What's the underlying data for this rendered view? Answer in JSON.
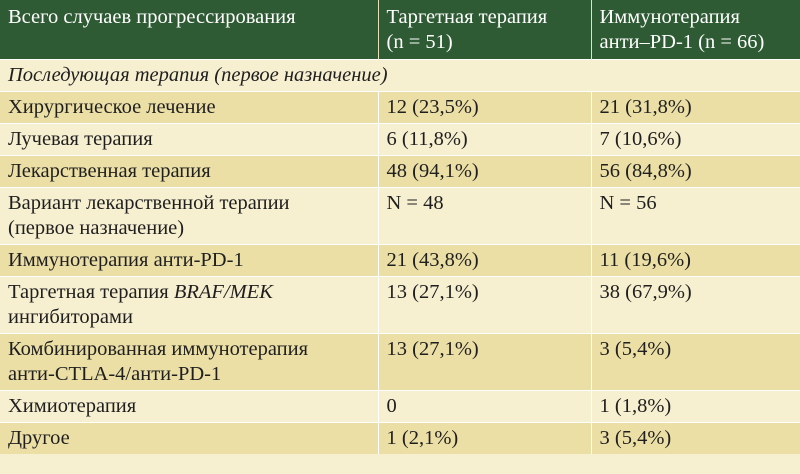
{
  "header": {
    "col1": "Всего случаев прогрессирования",
    "col2_line1": "Таргетная терапия",
    "col2_line2": "(n = 51)",
    "col3_line1": "Иммунотерапия",
    "col3_line2": "анти–PD-1 (n = 66)"
  },
  "section_title": "Последующая терапия (первое назначение)",
  "rows": [
    {
      "label": "Хирургическое лечение",
      "targeted": "12 (23,5%)",
      "immuno": "21 (31,8%)"
    },
    {
      "label": "Лучевая терапия",
      "targeted": "6 (11,8%)",
      "immuno": "7 (10,6%)"
    },
    {
      "label": "Лекарственная терапия",
      "targeted": "48 (94,1%)",
      "immuno": "56 (84,8%)"
    },
    {
      "label_line1": "Вариант лекарственной терапии",
      "label_line2": "(первое назначение)",
      "targeted": "N = 48",
      "immuno": "N = 56"
    },
    {
      "label": "Иммунотерапия анти-PD-1",
      "targeted": "21 (43,8%)",
      "immuno": "11 (19,6%)"
    },
    {
      "label_prefix": "Таргетная терапия ",
      "label_italic": "BRAF/MEK",
      "label_line2": "ингибиторами",
      "targeted": "13 (27,1%)",
      "immuno": "38 (67,9%)"
    },
    {
      "label_line1": "Комбинированная иммунотерапия",
      "label_line2": "анти-CTLA-4/анти-PD-1",
      "targeted": "13 (27,1%)",
      "immuno": "3 (5,4%)"
    },
    {
      "label": "Химиотерапия",
      "targeted": "0",
      "immuno": "1 (1,8%)"
    },
    {
      "label": "Другое",
      "targeted": "1 (2,1%)",
      "immuno": "3 (5,4%)"
    }
  ]
}
